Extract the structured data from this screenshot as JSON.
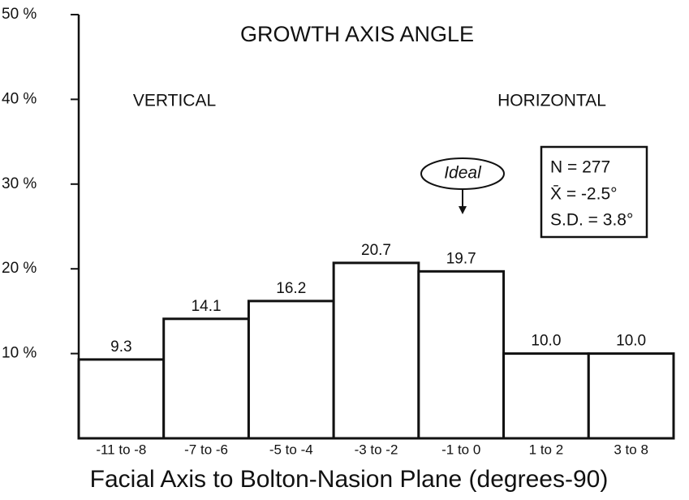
{
  "chart_data": {
    "type": "bar",
    "title": "GROWTH AXIS ANGLE",
    "x_label": "Facial Axis to Bolton-Nasion Plane (degrees-90)",
    "categories": [
      "-11 to -8",
      "-7 to -6",
      "-5 to -4",
      "-3 to -2",
      "-1 to 0",
      "1 to 2",
      "3 to 8"
    ],
    "values": [
      9.3,
      14.1,
      16.2,
      20.7,
      19.7,
      10,
      10
    ],
    "value_labels": [
      "9.3",
      "14.1",
      "16.2",
      "20.7",
      "19.7",
      "10.0",
      "10.0"
    ],
    "color": "#ffffff",
    "ylim": [
      0,
      50
    ],
    "yticks": [
      {
        "value": 10,
        "label": "10 %"
      },
      {
        "value": 20,
        "label": "20 %"
      },
      {
        "value": 30,
        "label": "30 %"
      },
      {
        "value": 40,
        "label": "40 %"
      },
      {
        "value": 50,
        "label": "50 %"
      }
    ],
    "annotations": [
      "VERTICAL",
      "HORIZONTAL",
      "Ideal",
      "N = 277",
      "X̄ = -2.5°",
      "S.D. = 3.8°"
    ]
  }
}
